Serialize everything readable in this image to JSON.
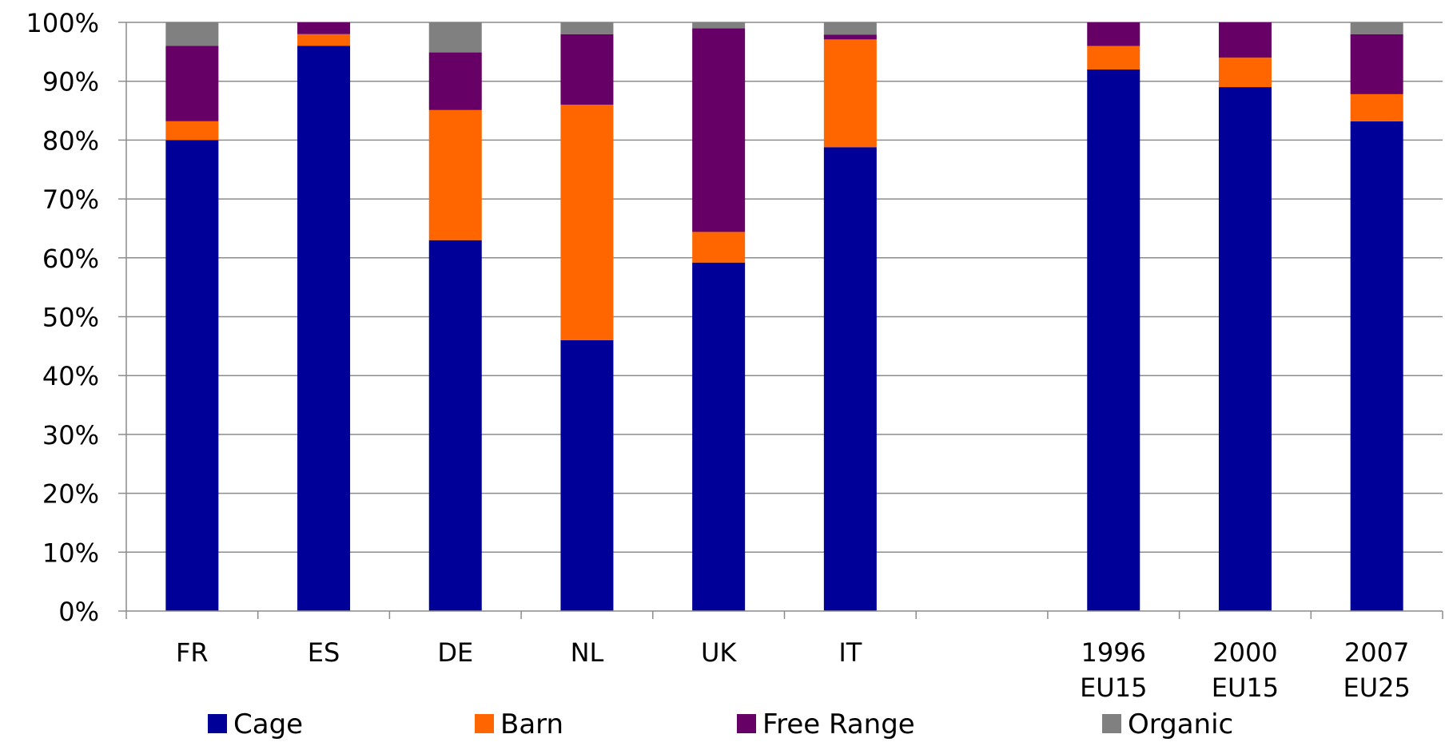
{
  "chart_data": {
    "type": "bar",
    "stacked": true,
    "title": "",
    "xlabel": "",
    "ylabel": "",
    "ylim": [
      0,
      100
    ],
    "y_tick_labels": [
      "0%",
      "10%",
      "20%",
      "30%",
      "40%",
      "50%",
      "60%",
      "70%",
      "80%",
      "90%",
      "100%"
    ],
    "grid": true,
    "legend_position": "bottom",
    "categories": [
      {
        "lines": [
          "FR"
        ]
      },
      {
        "lines": [
          "ES"
        ]
      },
      {
        "lines": [
          "DE"
        ]
      },
      {
        "lines": [
          "NL"
        ]
      },
      {
        "lines": [
          "UK"
        ]
      },
      {
        "lines": [
          "IT"
        ]
      },
      {
        "lines": [
          ""
        ]
      },
      {
        "lines": [
          "1996",
          "EU15"
        ]
      },
      {
        "lines": [
          "2000",
          "EU15"
        ]
      },
      {
        "lines": [
          "2007",
          "EU25"
        ]
      }
    ],
    "series": [
      {
        "name": "Cage",
        "color": "#000099",
        "values": [
          80,
          96,
          63,
          46,
          59.2,
          78.8,
          null,
          92,
          89,
          83.2
        ]
      },
      {
        "name": "Barn",
        "color": "#FF6600",
        "values": [
          3.2,
          2,
          22.1,
          40,
          5.2,
          18.3,
          null,
          4,
          5,
          4.6
        ]
      },
      {
        "name": "Free Range",
        "color": "#660066",
        "values": [
          12.8,
          2,
          9.8,
          12,
          34.6,
          0.8,
          null,
          4,
          6,
          10.2
        ]
      },
      {
        "name": "Organic",
        "color": "#808080",
        "values": [
          4,
          0,
          5.1,
          2,
          1,
          2.1,
          null,
          0,
          0,
          2
        ]
      }
    ]
  }
}
